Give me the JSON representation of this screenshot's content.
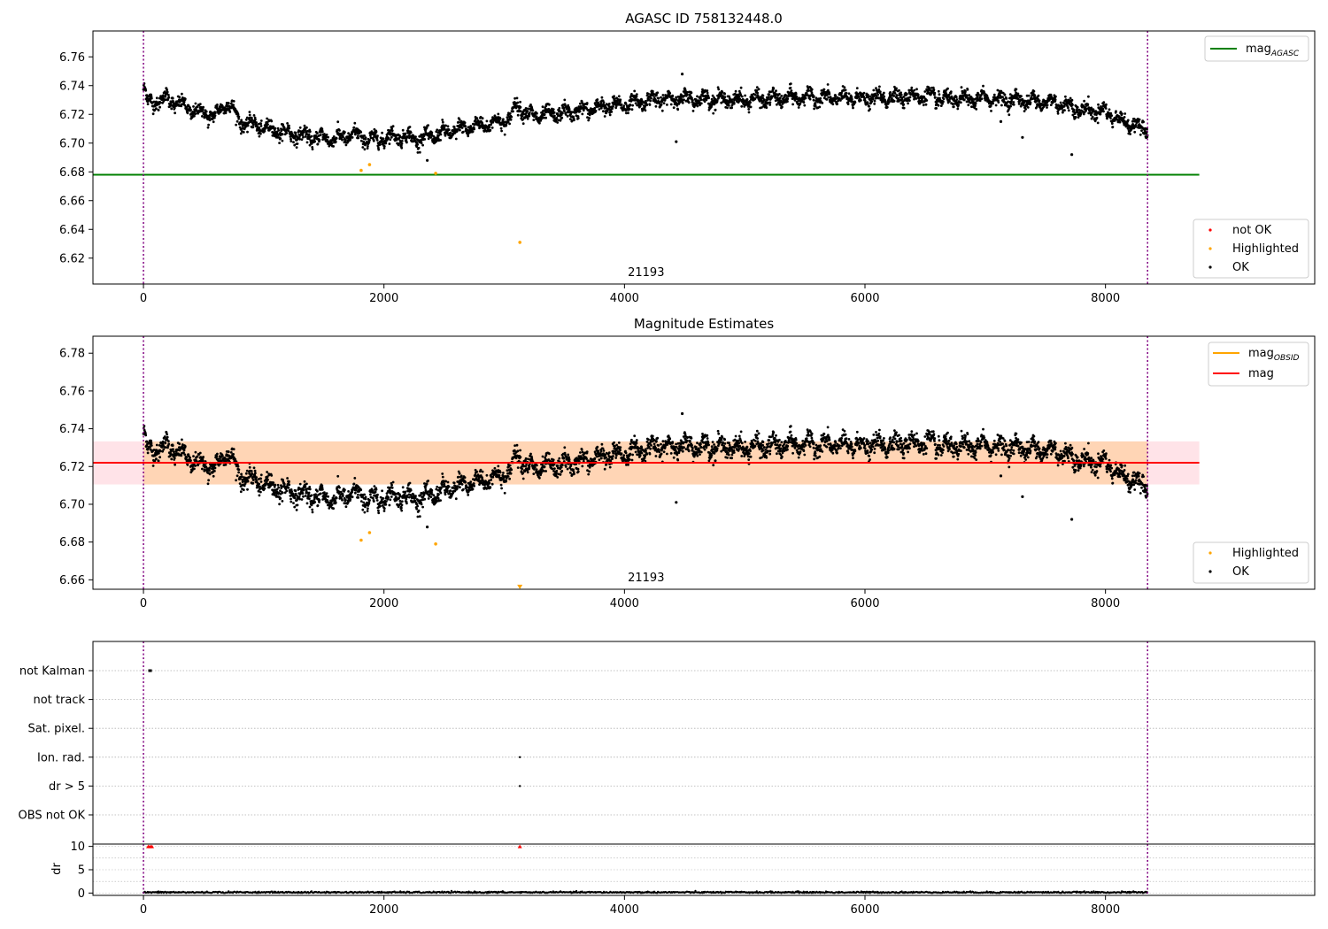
{
  "colors": {
    "ok": "#000000",
    "highlighted": "#ffa500",
    "not_ok": "#ff0000",
    "mag_agasc": "#008000",
    "mag_obsid": "#ffa500",
    "mag": "#ff0000",
    "band_mag": "#ffc0cb",
    "band_obsid": "#ffa500",
    "vline": "#800080",
    "grid": "#b0b0b0"
  },
  "chart_data": [
    {
      "id": "panel1",
      "type": "scatter",
      "title": "AGASC ID 758132448.0",
      "xlim": [
        -420,
        9740
      ],
      "ylim": [
        6.602,
        6.778
      ],
      "xticks": [
        0,
        2000,
        4000,
        6000,
        8000
      ],
      "yticks": [
        6.62,
        6.64,
        6.66,
        6.68,
        6.7,
        6.72,
        6.74,
        6.76
      ],
      "obsid_label": {
        "text": "21193",
        "x": 4180
      },
      "obsid_bounds": [
        0,
        8350
      ],
      "legend_lines": [
        {
          "name": "mag",
          "sub": "AGASC",
          "color": "#008000"
        }
      ],
      "legend_markers": [
        {
          "name": "not OK",
          "color": "#ff0000"
        },
        {
          "name": "Highlighted",
          "color": "#ffa500"
        },
        {
          "name": "OK",
          "color": "#000000"
        }
      ],
      "hlines": [
        {
          "y": 6.678,
          "x0": -420,
          "x1": 8780,
          "color": "#008000"
        }
      ],
      "highlighted_points": [
        [
          1810,
          6.681
        ],
        [
          1880,
          6.685
        ],
        [
          2430,
          6.679
        ],
        [
          3130,
          6.631
        ]
      ],
      "outlier_points": [
        [
          2360,
          6.688
        ],
        [
          4430,
          6.701
        ],
        [
          7310,
          6.704
        ],
        [
          7720,
          6.692
        ],
        [
          7130,
          6.715
        ],
        [
          4480,
          6.748
        ]
      ],
      "series_trend": [
        [
          0,
          6.738
        ],
        [
          40,
          6.728
        ],
        [
          200,
          6.731
        ],
        [
          400,
          6.723
        ],
        [
          600,
          6.719
        ],
        [
          700,
          6.729
        ],
        [
          800,
          6.715
        ],
        [
          1000,
          6.711
        ],
        [
          1200,
          6.707
        ],
        [
          1400,
          6.704
        ],
        [
          1600,
          6.703
        ],
        [
          1750,
          6.706
        ],
        [
          1900,
          6.702
        ],
        [
          2100,
          6.705
        ],
        [
          2300,
          6.703
        ],
        [
          2500,
          6.707
        ],
        [
          2700,
          6.711
        ],
        [
          2900,
          6.714
        ],
        [
          3050,
          6.716
        ],
        [
          3100,
          6.728
        ],
        [
          3200,
          6.719
        ],
        [
          3400,
          6.72
        ],
        [
          3600,
          6.722
        ],
        [
          3800,
          6.725
        ],
        [
          4000,
          6.727
        ],
        [
          4200,
          6.73
        ],
        [
          4500,
          6.731
        ],
        [
          5000,
          6.73
        ],
        [
          5500,
          6.732
        ],
        [
          6000,
          6.731
        ],
        [
          6500,
          6.733
        ],
        [
          6700,
          6.73
        ],
        [
          7000,
          6.731
        ],
        [
          7300,
          6.73
        ],
        [
          7600,
          6.728
        ],
        [
          7800,
          6.723
        ],
        [
          8000,
          6.722
        ],
        [
          8100,
          6.717
        ],
        [
          8200,
          6.713
        ],
        [
          8350,
          6.71
        ]
      ]
    },
    {
      "id": "panel2",
      "type": "scatter",
      "title": "Magnitude Estimates",
      "xlim": [
        -420,
        9740
      ],
      "ylim": [
        6.655,
        6.789
      ],
      "xticks": [
        0,
        2000,
        4000,
        6000,
        8000
      ],
      "yticks": [
        6.66,
        6.68,
        6.7,
        6.72,
        6.74,
        6.76,
        6.78
      ],
      "obsid_label": {
        "text": "21193",
        "x": 4180
      },
      "obsid_bounds": [
        0,
        8350
      ],
      "legend_lines": [
        {
          "name": "mag",
          "sub": "OBSID",
          "color": "#ffa500"
        },
        {
          "name": "mag",
          "sub": "",
          "color": "#ff0000"
        }
      ],
      "legend_markers": [
        {
          "name": "Highlighted",
          "color": "#ffa500"
        },
        {
          "name": "OK",
          "color": "#000000"
        }
      ],
      "mag_band": {
        "y": 6.722,
        "lo": 6.7105,
        "hi": 6.7333,
        "x0": -420,
        "x1": 8780
      },
      "obsid_band": {
        "lo": 6.7105,
        "hi": 6.7333,
        "x0": 0,
        "x1": 8350
      },
      "highlighted_points": [
        [
          1810,
          6.681
        ],
        [
          1880,
          6.685
        ],
        [
          2430,
          6.679
        ]
      ],
      "clipped_marker": {
        "x": 3130,
        "y": 6.656
      },
      "outlier_points": [
        [
          2360,
          6.688
        ],
        [
          4430,
          6.701
        ],
        [
          7310,
          6.704
        ],
        [
          7720,
          6.692
        ],
        [
          7130,
          6.715
        ],
        [
          4480,
          6.748
        ]
      ],
      "series_trend": "same as panel1"
    },
    {
      "id": "panel3",
      "type": "scatter",
      "title": "",
      "xlim": [
        -420,
        9740
      ],
      "category_labels": [
        "not Kalman",
        "not track",
        "Sat. pixel.",
        "Ion. rad.",
        "dr > 5",
        "OBS not OK"
      ],
      "flag_segments": [
        {
          "category": "not Kalman",
          "x0": 40,
          "x1": 70
        }
      ],
      "flag_points": [
        {
          "category": "Ion. rad.",
          "x": 3130
        },
        {
          "category": "dr > 5",
          "x": 3130
        }
      ]
    },
    {
      "id": "panel4",
      "type": "scatter",
      "title": "",
      "ylabel": "dr",
      "xlim": [
        -420,
        9740
      ],
      "ylim": [
        -0.5,
        10.5
      ],
      "xticks": [
        0,
        2000,
        4000,
        6000,
        8000
      ],
      "yticks": [
        0,
        5,
        10
      ],
      "clipped_markers": [
        [
          40,
          10
        ],
        [
          55,
          10
        ],
        [
          70,
          10
        ],
        [
          3130,
          10
        ]
      ]
    }
  ]
}
